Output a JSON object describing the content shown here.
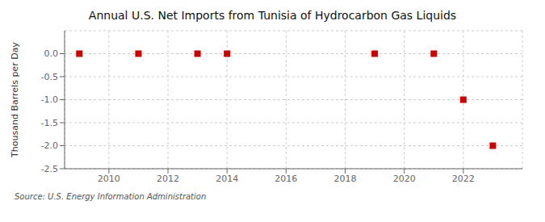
{
  "chart_data": {
    "type": "scatter",
    "title": "Annual U.S. Net Imports from Tunisia of Hydrocarbon Gas Liquids",
    "ylabel": "Thousand Barrels per Day",
    "source": "Source: U.S. Energy Information Administration",
    "x": [
      2009,
      2011,
      2013,
      2014,
      2019,
      2021,
      2022,
      2023
    ],
    "values": [
      0.0,
      0.0,
      0.0,
      0.0,
      0.0,
      0.0,
      -1.0,
      -2.0
    ],
    "color": "#cc0000",
    "marker": "square",
    "xlim": [
      2008.5,
      2024.0
    ],
    "ylim": [
      -2.5,
      0.5
    ],
    "xticks": [
      2010,
      2012,
      2014,
      2016,
      2018,
      2020,
      2022
    ],
    "yticks": [
      {
        "value": 0.0,
        "label": "0.0"
      },
      -0.5,
      {
        "value": -1.0,
        "label": "-1.0"
      },
      -1.5,
      {
        "value": -2.0,
        "label": "-2.0"
      },
      -2.5
    ],
    "grid": true
  }
}
